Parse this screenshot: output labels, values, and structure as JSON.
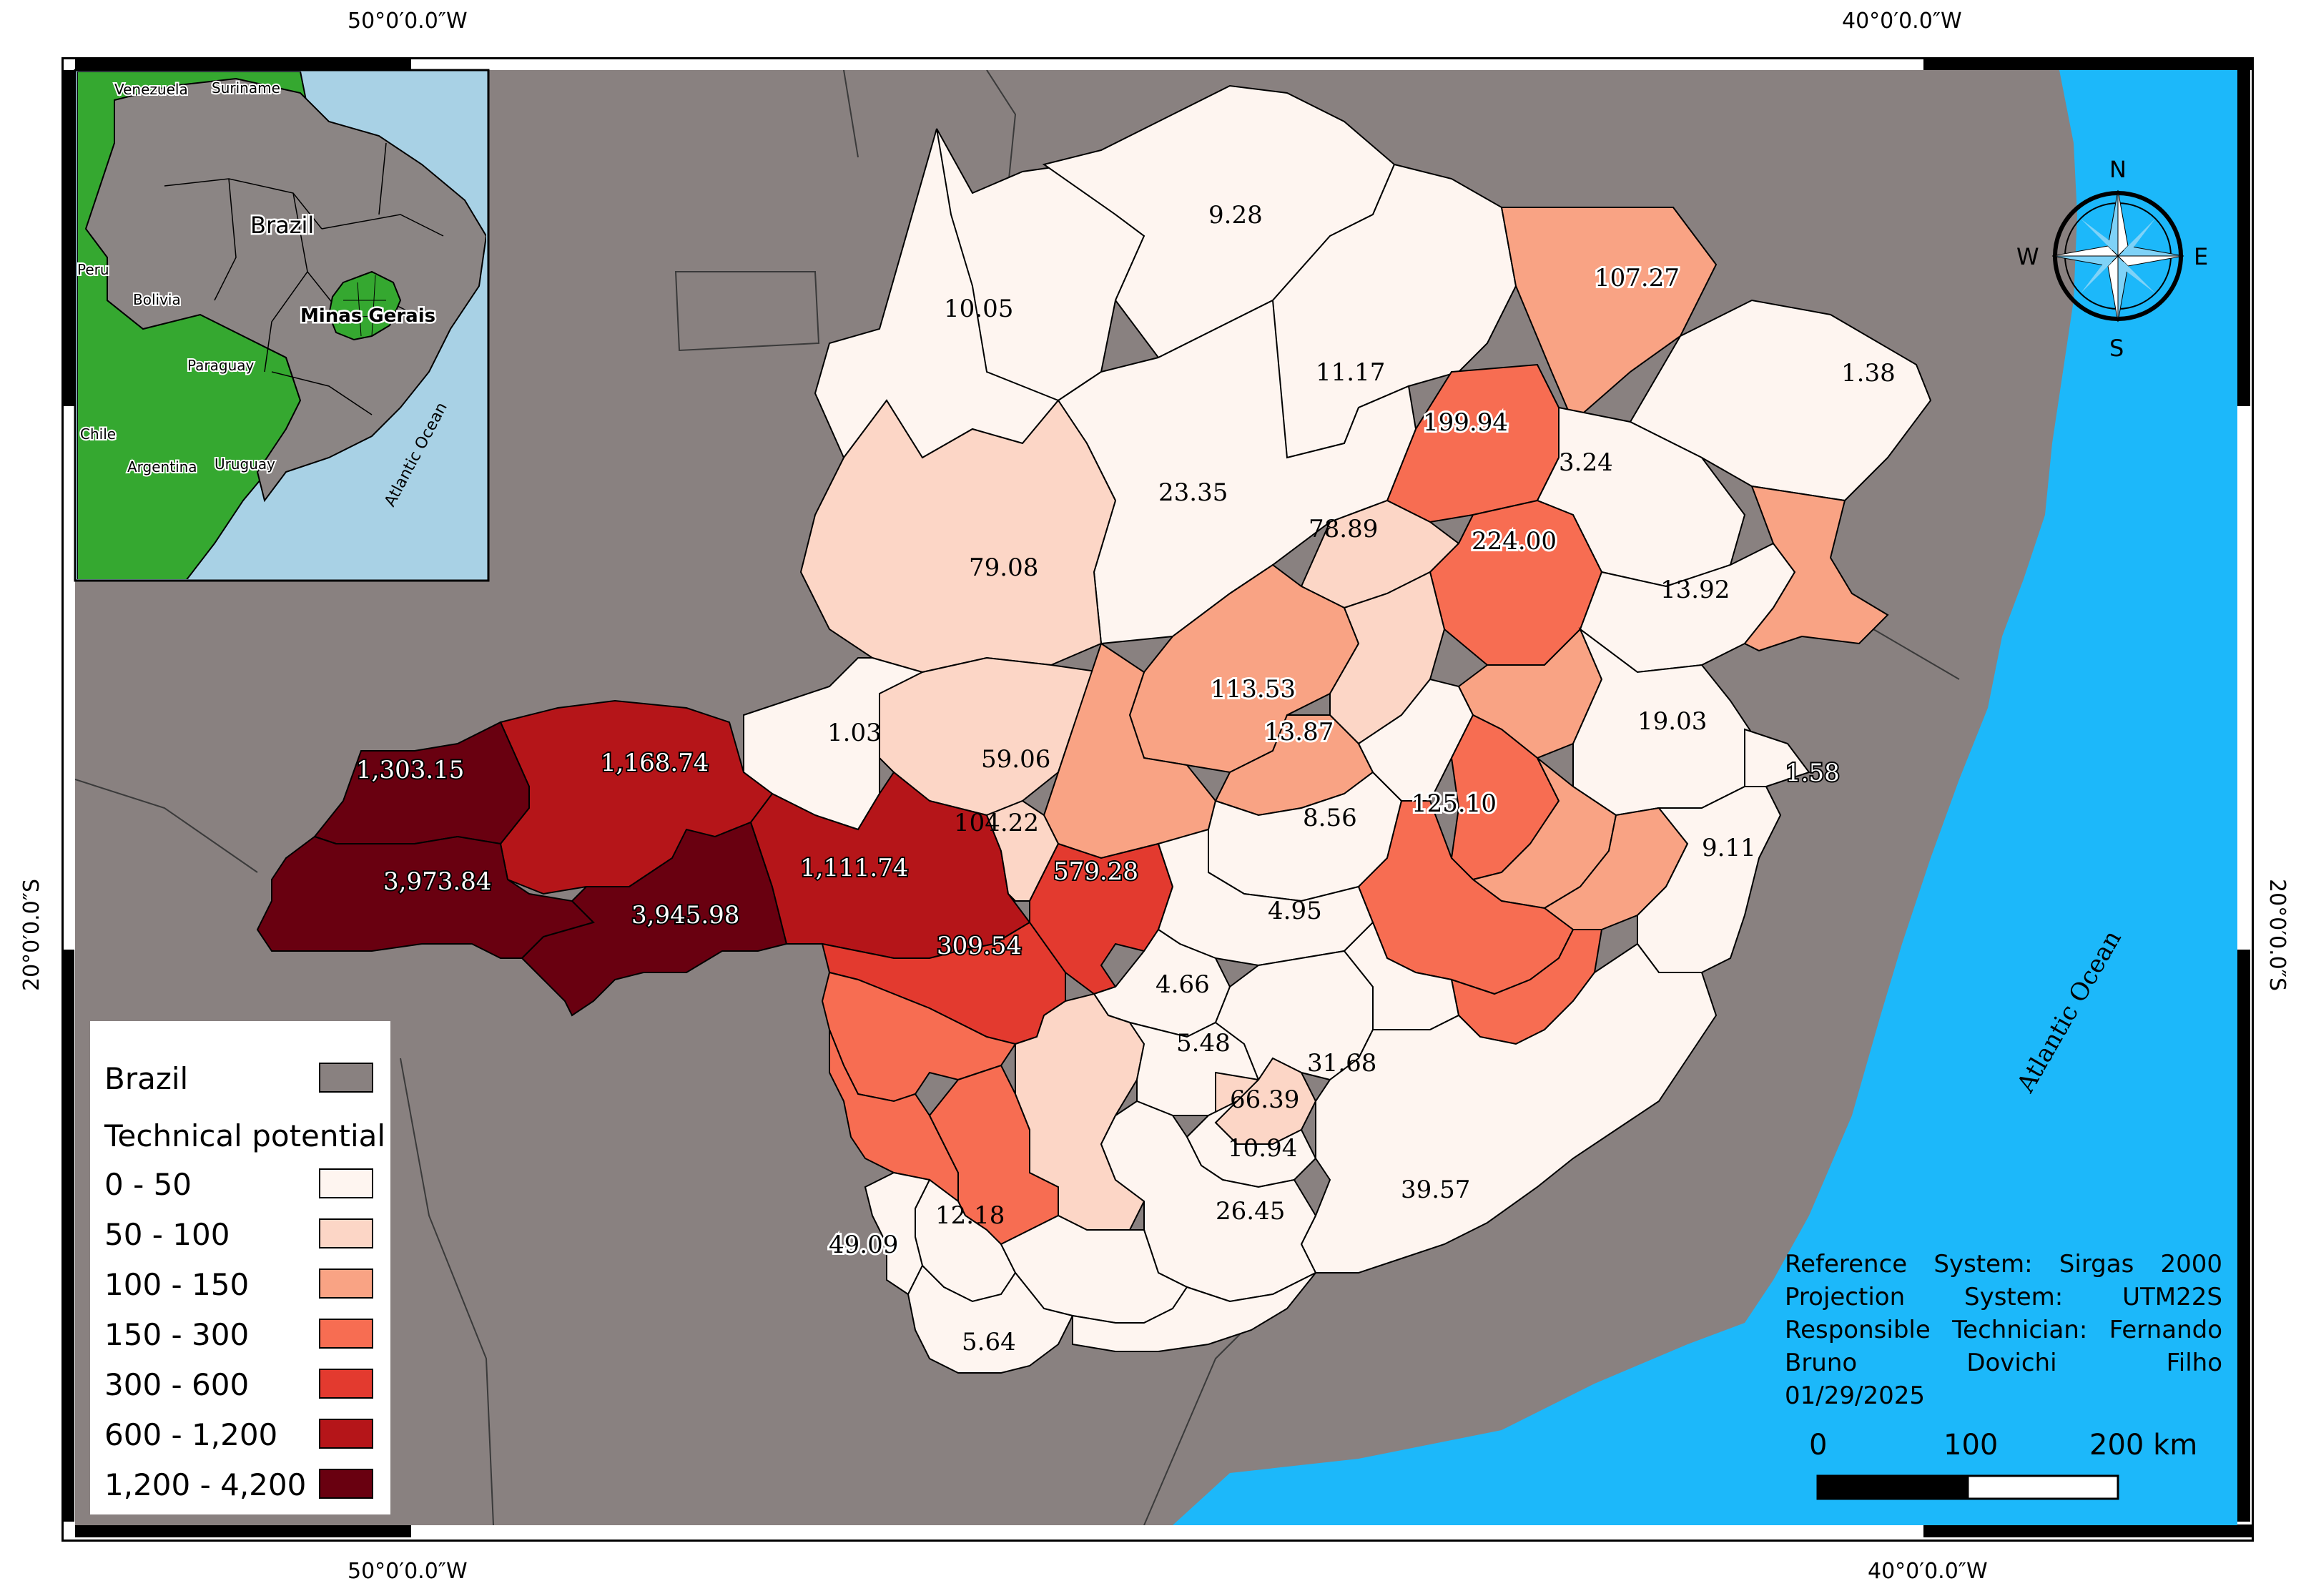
{
  "coordinates": {
    "top_left": "50°0′0.0″W",
    "top_right": "40°0′0.0″W",
    "bottom_left": "50°0′0.0″W",
    "bottom_right": "40°0′0.0″W",
    "left_side": "20°0′0.0″S",
    "right_side": "20°0′0.0″S"
  },
  "colors": {
    "brazil": "#898180",
    "ocean": "#1cb8fa",
    "class_0_50": "#fef5f0",
    "class_50_100": "#fcd6c6",
    "class_100_150": "#f9a384",
    "class_150_300": "#f76d52",
    "class_300_600": "#e33a2f",
    "class_600_1200": "#b51519",
    "class_1200_4200": "#690010",
    "inset_sea": "#a8d1e5",
    "inset_country": "#35a830",
    "inset_brazil": "#8b8584"
  },
  "map_labels": [
    "9.28",
    "10.05",
    "107.27",
    "11.17",
    "1.38",
    "199.94",
    "3.24",
    "23.35",
    "79.08",
    "78.89",
    "224.00",
    "13.92",
    "113.53",
    "13.87",
    "1.03",
    "59.06",
    "19.03",
    "1.58",
    "1,303.15",
    "1,168.74",
    "125.10",
    "8.56",
    "104.22",
    "9.11",
    "3,973.84",
    "1,111.74",
    "579.28",
    "3,945.98",
    "4.95",
    "309.54",
    "4.66",
    "5.48",
    "31.68",
    "66.39",
    "10.94",
    "39.57",
    "26.45",
    "12.18",
    "49.09",
    "5.64"
  ],
  "ocean_label": "Atlantic Ocean",
  "north_arrow": {
    "n": "N",
    "s": "S",
    "e": "E",
    "w": "W"
  },
  "inset": {
    "labels": [
      "Venezuela",
      "Suriname",
      "Brazil",
      "Peru",
      "Bolivia",
      "Minas Gerais",
      "Paraguay",
      "Chile",
      "Argentina",
      "Uruguay",
      "Atlantic Ocean"
    ]
  },
  "legend": {
    "brazil_label": "Brazil",
    "title": "Technical potential",
    "classes": [
      "0 - 50",
      "50 - 100",
      "100 - 150",
      "150 - 300",
      "300 - 600",
      "600 - 1,200",
      "1,200 - 4,200"
    ]
  },
  "info": {
    "line1": [
      "Reference",
      "System:",
      "Sirgas",
      "2000"
    ],
    "line2": [
      "Projection",
      "System:",
      "UTM22S"
    ],
    "line3": [
      "Responsible",
      "Technician:",
      "Fernando"
    ],
    "line4": [
      "Bruno",
      "Dovichi",
      "Filho"
    ],
    "line5": [
      "01/29/2025"
    ]
  },
  "scalebar": {
    "l0": "0",
    "l1": "100",
    "l2": "200 km"
  }
}
